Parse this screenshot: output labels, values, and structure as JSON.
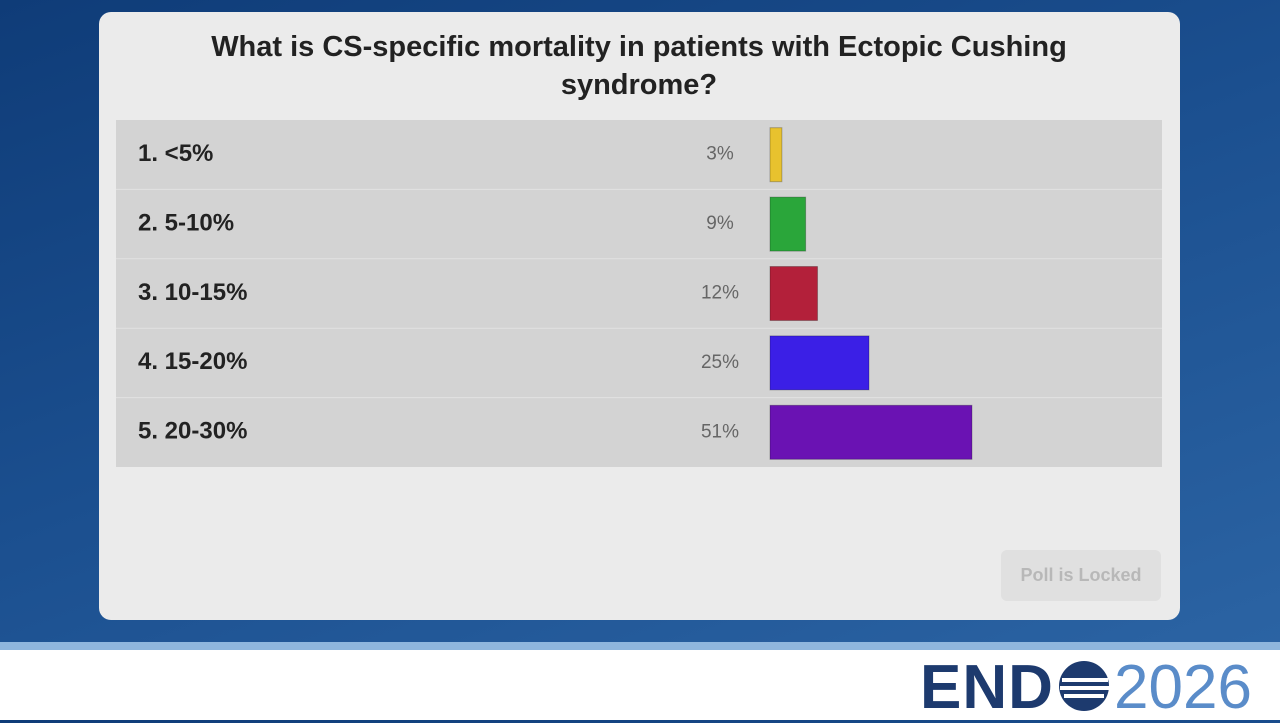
{
  "poll": {
    "question": "What is CS-specific mortality in patients with Ectopic Cushing syndrome?",
    "options": [
      "1. <5%",
      "2. 5-10%",
      "3. 10-15%",
      "4. 15-20%",
      "5. 20-30%"
    ],
    "values": [
      3,
      9,
      12,
      25,
      51
    ],
    "value_labels": [
      "3%",
      "9%",
      "12%",
      "25%",
      "51%"
    ],
    "colors": [
      "#e8c22e",
      "#2aa63a",
      "#b3203a",
      "#3b1fe6",
      "#6a12b3"
    ],
    "button": "Poll is Locked"
  },
  "logo": {
    "left": "END",
    "right": "2026"
  }
}
